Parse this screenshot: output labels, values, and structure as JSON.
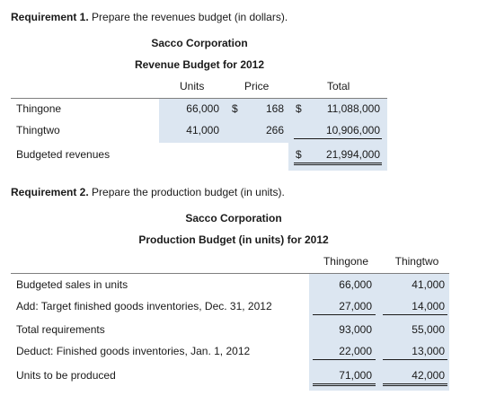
{
  "req1": {
    "label": "Requirement 1.",
    "text": "Prepare the revenues budget (in dollars).",
    "company": "Sacco Corporation",
    "title": "Revenue Budget for 2012",
    "headers": {
      "units": "Units",
      "price": "Price",
      "total": "Total"
    },
    "rows": [
      {
        "name": "Thingone",
        "units": "66,000",
        "dollar1": "$",
        "price": "168",
        "dollar2": "$",
        "total": "11,088,000"
      },
      {
        "name": "Thingtwo",
        "units": "41,000",
        "price": "266",
        "total": "10,906,000"
      }
    ],
    "budgeted": {
      "label": "Budgeted revenues",
      "dollar": "$",
      "total": "21,994,000"
    }
  },
  "req2": {
    "label": "Requirement 2.",
    "text": "Prepare the production budget (in units).",
    "company": "Sacco Corporation",
    "title": "Production Budget (in units) for 2012",
    "headers": {
      "col1": "Thingone",
      "col2": "Thingtwo"
    },
    "rows": [
      {
        "label": "Budgeted sales in units",
        "v1": "66,000",
        "v2": "41,000"
      },
      {
        "label": "Add: Target finished goods inventories, Dec. 31, 2012",
        "v1": "27,000",
        "v2": "14,000"
      },
      {
        "label": "Total requirements",
        "v1": "93,000",
        "v2": "55,000"
      },
      {
        "label": "Deduct: Finished goods inventories, Jan. 1, 2012",
        "v1": "22,000",
        "v2": "13,000"
      },
      {
        "label": "Units to be produced",
        "v1": "71,000",
        "v2": "42,000"
      }
    ]
  },
  "colors": {
    "input_shading": "#dce6f1"
  }
}
